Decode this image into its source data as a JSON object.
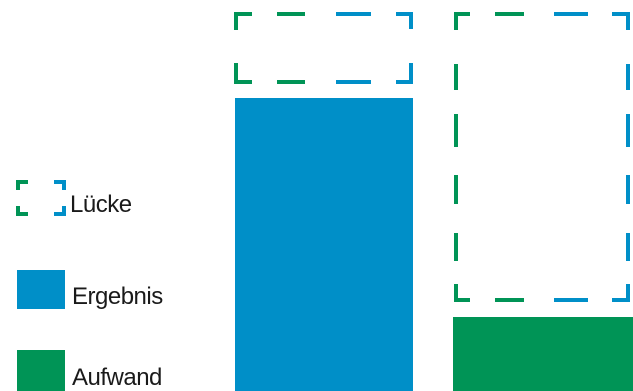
{
  "legend": {
    "gap_label": "Lücke",
    "result_label": "Ergebnis",
    "effort_label": "Aufwand"
  },
  "colors": {
    "result": "#008fc8",
    "effort": "#009456",
    "dash_blue": "#008fc8",
    "dash_green": "#009456",
    "background": "#ffffff"
  }
}
